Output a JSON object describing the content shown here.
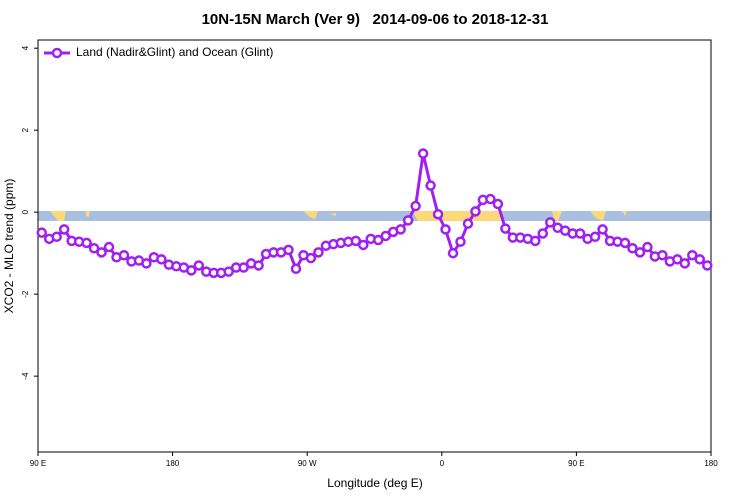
{
  "chart_data": {
    "type": "line",
    "title": "10N-15N March (Ver 9)   2014-09-06 to 2018-12-31",
    "x_label": "Longitude (deg E)",
    "y_label": "XCO2 - MLO trend (ppm)",
    "x": [
      92.5,
      97.5,
      102.5,
      107.5,
      112.5,
      117.5,
      122.5,
      127.5,
      132.5,
      137.5,
      142.5,
      147.5,
      152.5,
      157.5,
      162.5,
      167.5,
      172.5,
      177.5,
      182.5,
      187.5,
      192.5,
      197.5,
      202.5,
      207.5,
      212.5,
      217.5,
      222.5,
      227.5,
      232.5,
      237.5,
      242.5,
      247.5,
      252.5,
      257.5,
      262.5,
      267.5,
      272.5,
      277.5,
      282.5,
      287.5,
      292.5,
      297.5,
      302.5,
      307.5,
      312.5,
      317.5,
      322.5,
      327.5,
      332.5,
      337.5,
      342.5,
      347.5,
      352.5,
      357.5,
      362.5,
      367.5,
      372.5,
      377.5,
      382.5,
      387.5,
      392.5,
      397.5,
      402.5,
      407.5,
      412.5,
      417.5,
      422.5,
      427.5,
      432.5,
      437.5,
      442.5,
      447.5,
      452.5,
      457.5,
      462.5,
      467.5,
      472.5,
      477.5,
      482.5,
      487.5,
      492.5,
      497.5,
      502.5,
      507.5,
      512.5,
      517.5,
      522.5,
      527.5,
      532.5,
      537.5
    ],
    "series": [
      {
        "name": "Land (Nadir&Glint) and Ocean (Glint)",
        "color": "#a020f0",
        "values": [
          -0.5,
          -0.65,
          -0.6,
          -0.42,
          -0.7,
          -0.72,
          -0.75,
          -0.88,
          -0.98,
          -0.85,
          -1.1,
          -1.05,
          -1.2,
          -1.18,
          -1.25,
          -1.1,
          -1.15,
          -1.28,
          -1.32,
          -1.35,
          -1.42,
          -1.3,
          -1.45,
          -1.48,
          -1.48,
          -1.45,
          -1.35,
          -1.35,
          -1.25,
          -1.3,
          -1.02,
          -0.98,
          -0.98,
          -0.92,
          -1.38,
          -1.05,
          -1.12,
          -0.98,
          -0.82,
          -0.78,
          -0.75,
          -0.72,
          -0.7,
          -0.8,
          -0.65,
          -0.68,
          -0.58,
          -0.48,
          -0.42,
          -0.2,
          0.15,
          1.43,
          0.65,
          -0.05,
          -0.42,
          -1.0,
          -0.72,
          -0.28,
          0.02,
          0.3,
          0.32,
          0.2,
          -0.4,
          -0.62,
          -0.62,
          -0.65,
          -0.7,
          -0.52,
          -0.25,
          -0.38,
          -0.45,
          -0.52,
          -0.52,
          -0.65,
          -0.6,
          -0.42,
          -0.7,
          -0.72,
          -0.75,
          -0.88,
          -0.98,
          -0.85,
          -1.08,
          -1.05,
          -1.2,
          -1.15,
          -1.25,
          -1.05,
          -1.15,
          -1.3
        ]
      }
    ],
    "xlim": [
      90,
      540
    ],
    "xticks": [
      {
        "value": 90,
        "label": "90 E"
      },
      180,
      {
        "value": 270,
        "label": "90 W"
      },
      {
        "value": 360,
        "label": "0"
      },
      {
        "value": 450,
        "label": "90 E"
      },
      {
        "value": 540,
        "label": "180"
      }
    ],
    "ylim": [
      -5.85,
      4.2
    ],
    "yticks": [
      -4,
      -2,
      0,
      2,
      4
    ],
    "legend": "top-left",
    "grid": false
  }
}
